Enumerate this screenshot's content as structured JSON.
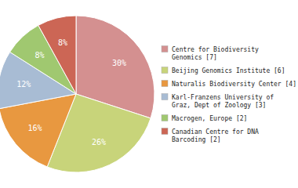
{
  "chart_data": {
    "type": "pie",
    "categories": [
      "Centre for Biodiversity\nGenomics [7]",
      "Beijing Genomics Institute [6]",
      "Naturalis Biodiversity Center [4]",
      "Karl-Franzens University of\nGraz, Dept of Zoology [3]",
      "Macrogen, Europe [2]",
      "Canadian Centre for DNA\nBarcoding [2]"
    ],
    "values": [
      30,
      26,
      16,
      12,
      8,
      8
    ],
    "value_labels": [
      "30%",
      "26%",
      "16%",
      "12%",
      "8%",
      "8%"
    ],
    "colors": [
      "#d49090",
      "#c8d47a",
      "#e89840",
      "#a8bcd4",
      "#a0c870",
      "#cc6655"
    ],
    "data_labels": true,
    "legend": "right"
  }
}
